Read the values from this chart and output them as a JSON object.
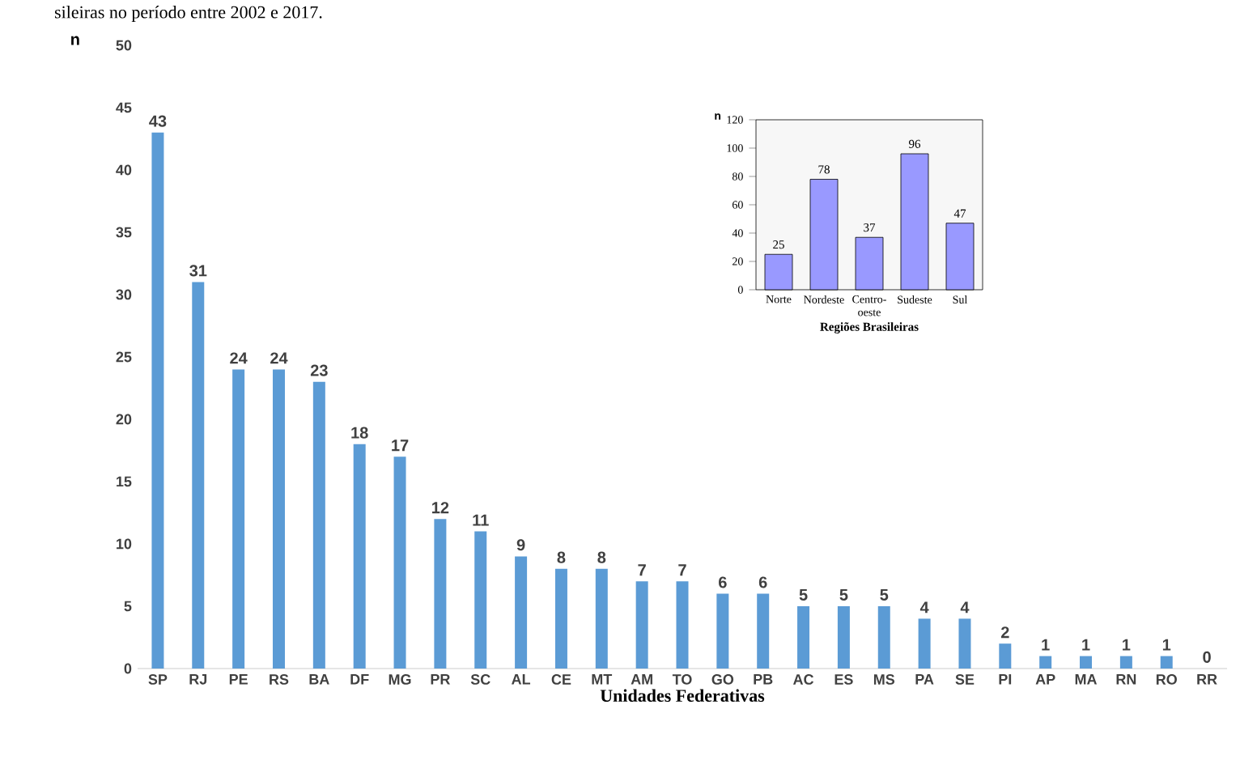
{
  "chart_data": [
    {
      "type": "bar",
      "ylabel": "n",
      "xlabel": "Unidades Federativas",
      "annotations": [
        "sileiras no período entre 2002 e 2017."
      ],
      "categories": [
        "SP",
        "RJ",
        "PE",
        "RS",
        "BA",
        "DF",
        "MG",
        "PR",
        "SC",
        "AL",
        "CE",
        "MT",
        "AM",
        "TO",
        "GO",
        "PB",
        "AC",
        "ES",
        "MS",
        "PA",
        "SE",
        "PI",
        "AP",
        "MA",
        "RN",
        "RO",
        "RR"
      ],
      "values": [
        43,
        31,
        24,
        24,
        23,
        18,
        17,
        12,
        11,
        9,
        8,
        8,
        7,
        7,
        6,
        6,
        5,
        5,
        5,
        4,
        4,
        2,
        1,
        1,
        1,
        1,
        0
      ],
      "color": "#5b9bd5",
      "ylim": [
        0,
        50
      ],
      "yticks": [
        0,
        5,
        10,
        15,
        20,
        25,
        30,
        35,
        40,
        45,
        50
      ],
      "data_labels": true
    },
    {
      "type": "bar",
      "ylabel": "n",
      "xlabel": "Regiões Brasileiras",
      "categories": [
        "Norte",
        "Nordeste",
        "Centro-oeste",
        "Sudeste",
        "Sul"
      ],
      "values": [
        25,
        78,
        37,
        96,
        47
      ],
      "color": "#9999ff",
      "ylim": [
        0,
        120
      ],
      "yticks": [
        0,
        20,
        40,
        60,
        80,
        100,
        120
      ],
      "data_labels": true
    }
  ]
}
